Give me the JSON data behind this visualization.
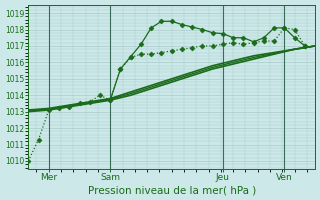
{
  "xlabel": "Pression niveau de la mer( hPa )",
  "bg_color": "#cce8e8",
  "grid_color": "#aacccc",
  "line_color": "#1a6b1a",
  "ylim": [
    1009.5,
    1019.5
  ],
  "yticks": [
    1010,
    1011,
    1012,
    1013,
    1014,
    1015,
    1016,
    1017,
    1018,
    1019
  ],
  "xlim": [
    0,
    56
  ],
  "xtick_labels": [
    "Mer",
    "Sam",
    "Jeu",
    "Ven"
  ],
  "xtick_positions": [
    4,
    16,
    38,
    50
  ],
  "vline_positions": [
    4,
    16,
    38,
    50
  ],
  "series": [
    {
      "x": [
        0,
        2,
        4,
        6,
        8,
        10,
        12,
        14,
        16,
        18,
        20,
        22,
        24,
        26,
        28,
        30,
        32,
        34,
        36,
        38,
        40,
        42,
        44,
        46,
        48,
        50,
        52,
        54
      ],
      "y": [
        1010.0,
        1011.3,
        1013.1,
        1013.2,
        1013.3,
        1013.5,
        1013.6,
        1014.0,
        1013.7,
        1015.6,
        1016.3,
        1016.5,
        1016.5,
        1016.6,
        1016.7,
        1016.8,
        1016.9,
        1017.0,
        1017.0,
        1017.1,
        1017.2,
        1017.1,
        1017.2,
        1017.3,
        1017.3,
        1018.1,
        1018.0,
        1017.0
      ],
      "marker": "D",
      "markersize": 2.5,
      "linewidth": 0.9,
      "linestyle": ":"
    },
    {
      "x": [
        0,
        4,
        8,
        12,
        16,
        20,
        24,
        28,
        32,
        36,
        40,
        44,
        48,
        52,
        56
      ],
      "y": [
        1013.1,
        1013.2,
        1013.4,
        1013.6,
        1013.8,
        1014.2,
        1014.6,
        1015.0,
        1015.4,
        1015.8,
        1016.1,
        1016.4,
        1016.6,
        1016.8,
        1017.0
      ],
      "marker": null,
      "markersize": 0,
      "linewidth": 1.2,
      "linestyle": "-"
    },
    {
      "x": [
        0,
        4,
        8,
        12,
        16,
        20,
        24,
        28,
        32,
        36,
        40,
        44,
        48,
        52,
        56
      ],
      "y": [
        1013.0,
        1013.1,
        1013.3,
        1013.5,
        1013.7,
        1014.0,
        1014.4,
        1014.8,
        1015.2,
        1015.6,
        1015.9,
        1016.2,
        1016.5,
        1016.8,
        1017.0
      ],
      "marker": null,
      "markersize": 0,
      "linewidth": 1.2,
      "linestyle": "-"
    },
    {
      "x": [
        0,
        4,
        8,
        12,
        16,
        20,
        24,
        28,
        32,
        36,
        40,
        44,
        48,
        52,
        56
      ],
      "y": [
        1013.05,
        1013.15,
        1013.35,
        1013.55,
        1013.75,
        1014.1,
        1014.5,
        1014.9,
        1015.3,
        1015.7,
        1016.0,
        1016.3,
        1016.55,
        1016.8,
        1017.0
      ],
      "marker": null,
      "markersize": 0,
      "linewidth": 1.0,
      "linestyle": "-"
    },
    {
      "x": [
        16,
        18,
        20,
        22,
        24,
        26,
        28,
        30,
        32,
        34,
        36,
        38,
        40,
        42,
        44,
        46,
        48,
        50,
        52,
        54
      ],
      "y": [
        1013.7,
        1015.6,
        1016.35,
        1017.1,
        1018.1,
        1018.5,
        1018.5,
        1018.3,
        1018.15,
        1018.0,
        1017.8,
        1017.75,
        1017.5,
        1017.5,
        1017.25,
        1017.5,
        1018.1,
        1018.1,
        1017.5,
        1017.0
      ],
      "marker": "D",
      "markersize": 2.5,
      "linewidth": 0.9,
      "linestyle": "-"
    }
  ]
}
